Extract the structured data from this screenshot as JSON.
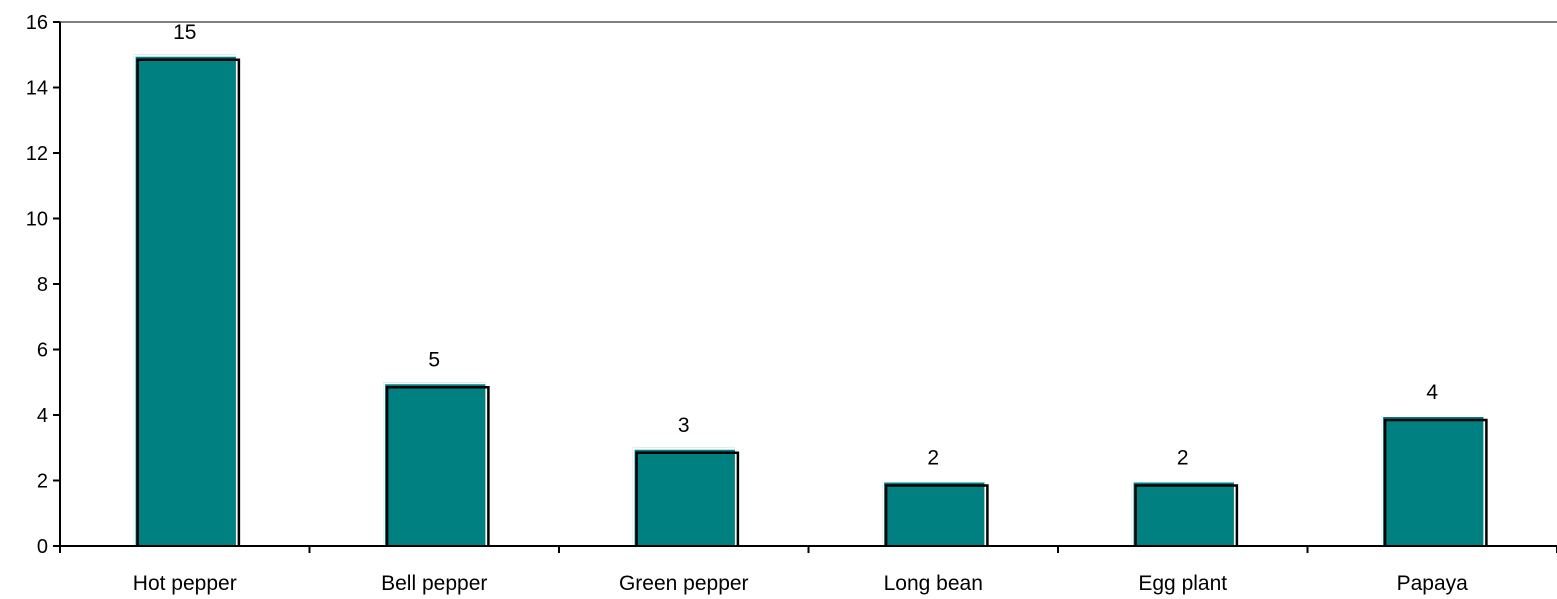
{
  "chart_data": {
    "type": "bar",
    "categories": [
      "Hot pepper",
      "Bell pepper",
      "Green pepper",
      "Long bean",
      "Egg plant",
      "Papaya"
    ],
    "values": [
      15,
      5,
      3,
      2,
      2,
      4
    ],
    "data_labels": [
      "15",
      "5",
      "3",
      "2",
      "2",
      "4"
    ],
    "y_ticks": [
      "0",
      "2",
      "4",
      "6",
      "8",
      "10",
      "12",
      "14",
      "16"
    ],
    "ylim": [
      0,
      16
    ],
    "y_tick_step": 2,
    "title": "",
    "xlabel": "",
    "ylabel": "",
    "grid": false,
    "legend": "none",
    "colors": {
      "bar_fill": "#008080",
      "bar_shadow": "#000000",
      "bar_highlight": "#ffffff",
      "axis": "#000000",
      "top_border": "#808080"
    }
  }
}
